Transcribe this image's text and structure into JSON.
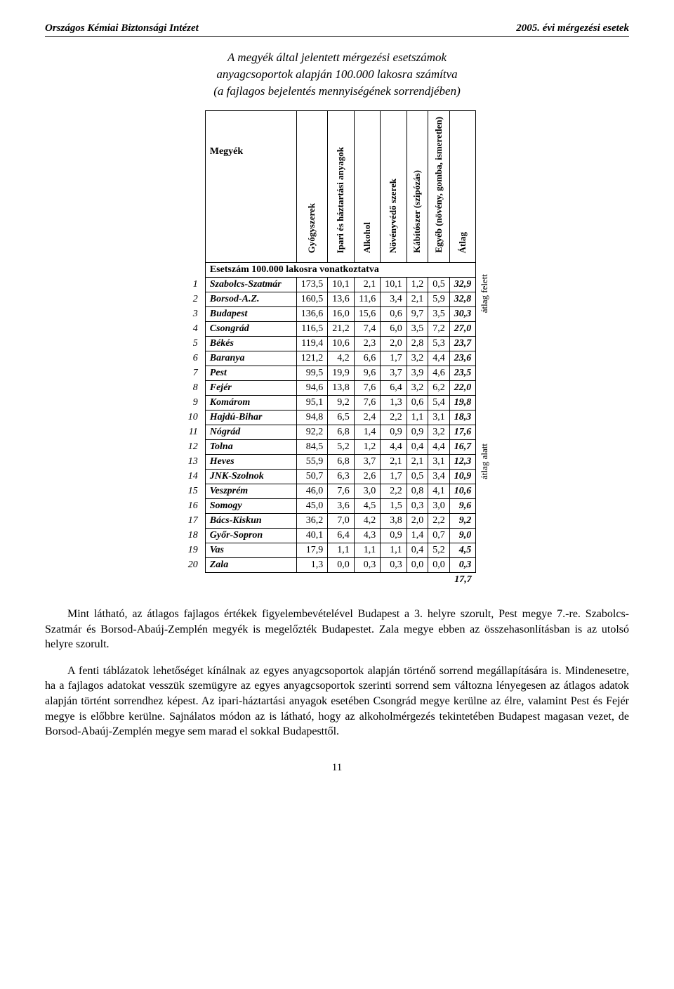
{
  "header": {
    "left": "Országos Kémiai Biztonsági Intézet",
    "right": "2005. évi mérgezési esetek"
  },
  "title": {
    "line1": "A megyék által jelentett mérgezési esetszámok",
    "line2": "anyagcsoportok alapján 100.000 lakosra számítva",
    "line3": "(a fajlagos bejelentés mennyiségének sorrendjében)"
  },
  "table": {
    "corner_label": "Megyék",
    "subhead": "Esetszám 100.000 lakosra vonatkoztatva",
    "columns": [
      "Gyógyszerek",
      "Ipari és\nháztartási\nanyagok",
      "Alkohol",
      "Növényvédő\nszerek",
      "Kábítószer\n(szipózás)",
      "Egyéb (növény,\ngomba,\nismeretlen)",
      "Átlag"
    ],
    "rows": [
      {
        "n": "1",
        "name": "Szabolcs-Szatmár",
        "v": [
          "173,5",
          "10,1",
          "2,1",
          "10,1",
          "1,2",
          "0,5",
          "32,9"
        ]
      },
      {
        "n": "2",
        "name": "Borsod-A.Z.",
        "v": [
          "160,5",
          "13,6",
          "11,6",
          "3,4",
          "2,1",
          "5,9",
          "32,8"
        ]
      },
      {
        "n": "3",
        "name": "Budapest",
        "v": [
          "136,6",
          "16,0",
          "15,6",
          "0,6",
          "9,7",
          "3,5",
          "30,3"
        ]
      },
      {
        "n": "4",
        "name": "Csongrád",
        "v": [
          "116,5",
          "21,2",
          "7,4",
          "6,0",
          "3,5",
          "7,2",
          "27,0"
        ]
      },
      {
        "n": "5",
        "name": "Békés",
        "v": [
          "119,4",
          "10,6",
          "2,3",
          "2,0",
          "2,8",
          "5,3",
          "23,7"
        ]
      },
      {
        "n": "6",
        "name": "Baranya",
        "v": [
          "121,2",
          "4,2",
          "6,6",
          "1,7",
          "3,2",
          "4,4",
          "23,6"
        ]
      },
      {
        "n": "7",
        "name": "Pest",
        "v": [
          "99,5",
          "19,9",
          "9,6",
          "3,7",
          "3,9",
          "4,6",
          "23,5"
        ]
      },
      {
        "n": "8",
        "name": "Fejér",
        "v": [
          "94,6",
          "13,8",
          "7,6",
          "6,4",
          "3,2",
          "6,2",
          "22,0"
        ]
      },
      {
        "n": "9",
        "name": "Komárom",
        "v": [
          "95,1",
          "9,2",
          "7,6",
          "1,3",
          "0,6",
          "5,4",
          "19,8"
        ]
      },
      {
        "n": "10",
        "name": "Hajdú-Bihar",
        "v": [
          "94,8",
          "6,5",
          "2,4",
          "2,2",
          "1,1",
          "3,1",
          "18,3"
        ]
      },
      {
        "n": "11",
        "name": "Nógrád",
        "v": [
          "92,2",
          "6,8",
          "1,4",
          "0,9",
          "0,9",
          "3,2",
          "17,6"
        ]
      },
      {
        "n": "12",
        "name": "Tolna",
        "v": [
          "84,5",
          "5,2",
          "1,2",
          "4,4",
          "0,4",
          "4,4",
          "16,7"
        ]
      },
      {
        "n": "13",
        "name": "Heves",
        "v": [
          "55,9",
          "6,8",
          "3,7",
          "2,1",
          "2,1",
          "3,1",
          "12,3"
        ]
      },
      {
        "n": "14",
        "name": "JNK-Szolnok",
        "v": [
          "50,7",
          "6,3",
          "2,6",
          "1,7",
          "0,5",
          "3,4",
          "10,9"
        ]
      },
      {
        "n": "15",
        "name": "Veszprém",
        "v": [
          "46,0",
          "7,6",
          "3,0",
          "2,2",
          "0,8",
          "4,1",
          "10,6"
        ]
      },
      {
        "n": "16",
        "name": "Somogy",
        "v": [
          "45,0",
          "3,6",
          "4,5",
          "1,5",
          "0,3",
          "3,0",
          "9,6"
        ]
      },
      {
        "n": "17",
        "name": "Bács-Kiskun",
        "v": [
          "36,2",
          "7,0",
          "4,2",
          "3,8",
          "2,0",
          "2,2",
          "9,2"
        ]
      },
      {
        "n": "18",
        "name": "Győr-Sopron",
        "v": [
          "40,1",
          "6,4",
          "4,3",
          "0,9",
          "1,4",
          "0,7",
          "9,0"
        ]
      },
      {
        "n": "19",
        "name": "Vas",
        "v": [
          "17,9",
          "1,1",
          "1,1",
          "1,1",
          "0,4",
          "5,2",
          "4,5"
        ]
      },
      {
        "n": "20",
        "name": "Zala",
        "v": [
          "1,3",
          "0,0",
          "0,3",
          "0,3",
          "0,0",
          "0,0",
          "0,3"
        ]
      }
    ],
    "overall_avg": "17,7",
    "side_upper": "átlag felett",
    "side_lower": "átlag alatt"
  },
  "paragraphs": {
    "p1": "Mint látható, az átlagos fajlagos értékek figyelembevételével Budapest a 3. helyre szorult, Pest megye 7.-re. Szabolcs-Szatmár és Borsod-Abaúj-Zemplén megyék is megelőzték Budapestet. Zala megye ebben az összehasonlításban is az utolsó helyre szorult.",
    "p2": "A fenti táblázatok lehetőséget kínálnak az egyes anyagcsoportok alapján történő sorrend megállapítására is. Mindenesetre, ha a fajlagos adatokat vesszük szemügyre az egyes anyagcsoportok szerinti sorrend sem változna lényegesen az átlagos adatok alapján történt sorrendhez képest. Az ipari-háztartási anyagok esetében Csongrád megye kerülne az élre, valamint Pest és Fejér megye is előbbre kerülne. Sajnálatos módon az is látható, hogy az alkoholmérgezés tekintetében Budapest magasan vezet, de Borsod-Abaúj-Zemplén megye sem marad el sokkal Budapesttől."
  },
  "pagenum": "11"
}
